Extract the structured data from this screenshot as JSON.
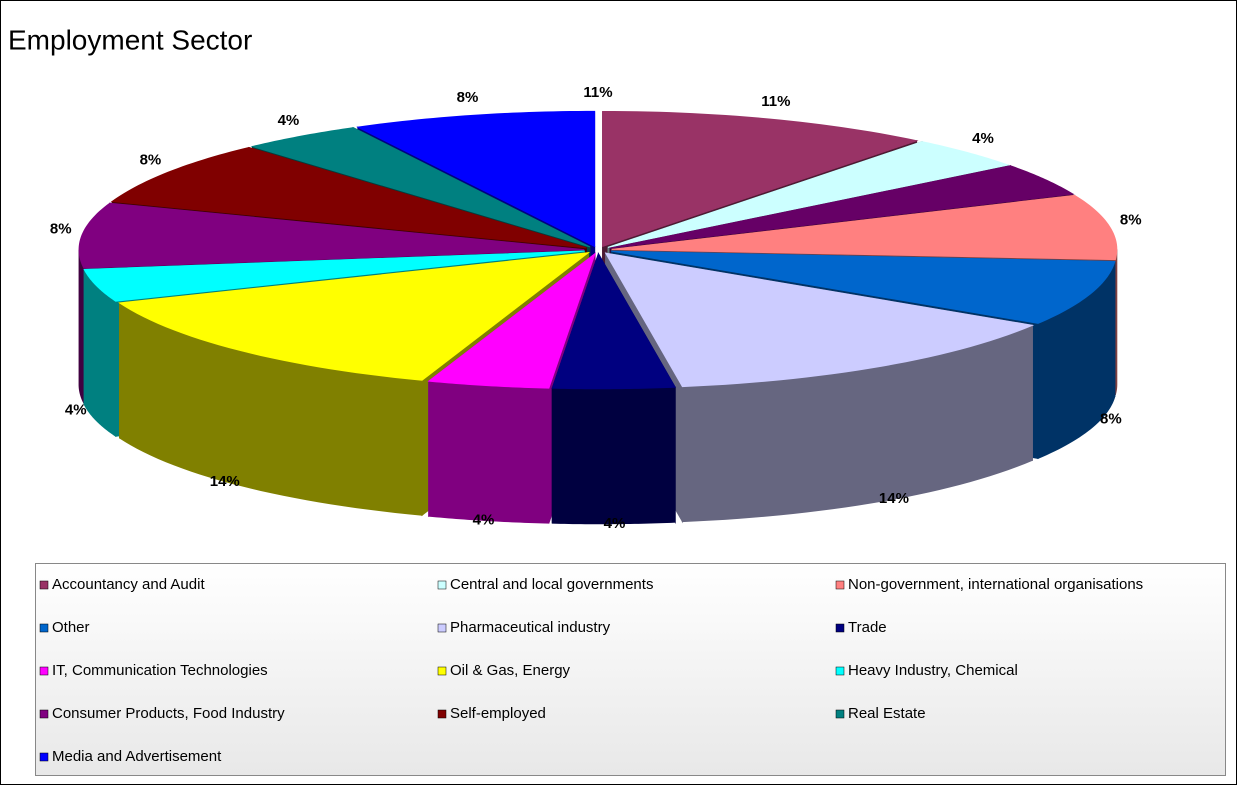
{
  "chart_data": {
    "type": "pie3d",
    "title": "Employment Sector",
    "categories": [
      "Accountancy and Audit",
      "Central and local governments",
      null,
      "Non-government, international organisations",
      "Other",
      "Pharmaceutical industry",
      "Trade",
      "IT, Communication Technologies",
      "Oil & Gas, Energy",
      "Heavy Industry, Chemical",
      "Consumer Products, Food Industry",
      "Self-employed",
      "Real Estate",
      "Media and Advertisement"
    ],
    "values": [
      11,
      4,
      4,
      8,
      8,
      14,
      4,
      4,
      14,
      4,
      8,
      8,
      4,
      8
    ],
    "value_labels": [
      "11%",
      "4%",
      null,
      "8%",
      "8%",
      "14%",
      "4%",
      "4%",
      "14%",
      "4%",
      "8%",
      "8%",
      "4%",
      "8%"
    ],
    "colors": [
      "#993366",
      "#ccffff",
      "#660066",
      "#ff8080",
      "#0066cc",
      "#ccccff",
      "#000080",
      "#ff00ff",
      "#ffff00",
      "#00ffff",
      "#800080",
      "#800000",
      "#008080",
      "#0000ff"
    ],
    "annotations": [
      "11%"
    ],
    "legend": "bottom"
  }
}
